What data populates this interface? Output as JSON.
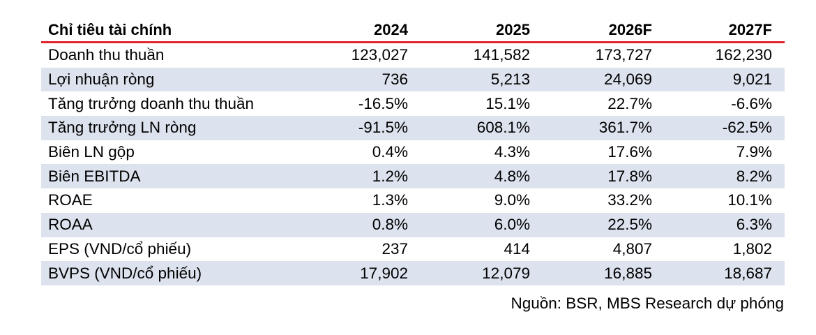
{
  "table": {
    "headers": [
      "Chỉ tiêu tài chính",
      "2024",
      "2025",
      "2026F",
      "2027F"
    ],
    "rows": [
      {
        "label": "Doanh thu thuần",
        "values": [
          "123,027",
          "141,582",
          "173,727",
          "162,230"
        ]
      },
      {
        "label": "Lợi nhuận ròng",
        "values": [
          "736",
          "5,213",
          "24,069",
          "9,021"
        ]
      },
      {
        "label": "Tăng trưởng doanh thu thuần",
        "values": [
          "-16.5%",
          "15.1%",
          "22.7%",
          "-6.6%"
        ]
      },
      {
        "label": "Tăng trưởng LN ròng",
        "values": [
          "-91.5%",
          "608.1%",
          "361.7%",
          "-62.5%"
        ]
      },
      {
        "label": "Biên LN gộp",
        "values": [
          "0.4%",
          "4.3%",
          "17.6%",
          "7.9%"
        ]
      },
      {
        "label": "Biên EBITDA",
        "values": [
          "1.2%",
          "4.8%",
          "17.8%",
          "8.2%"
        ]
      },
      {
        "label": "ROAE",
        "values": [
          "1.3%",
          "9.0%",
          "33.2%",
          "10.1%"
        ]
      },
      {
        "label": "ROAA",
        "values": [
          "0.8%",
          "6.0%",
          "22.5%",
          "6.3%"
        ]
      },
      {
        "label": "EPS (VND/cổ phiếu)",
        "values": [
          "237",
          "414",
          "4,807",
          "1,802"
        ]
      },
      {
        "label": "BVPS (VND/cổ phiếu)",
        "values": [
          "17,902",
          "12,079",
          "16,885",
          "18,687"
        ]
      }
    ]
  },
  "source": "Nguồn: BSR, MBS Research dự phóng",
  "colors": {
    "header_rule": "#e0262f",
    "row_shade": "#dde3ee"
  }
}
